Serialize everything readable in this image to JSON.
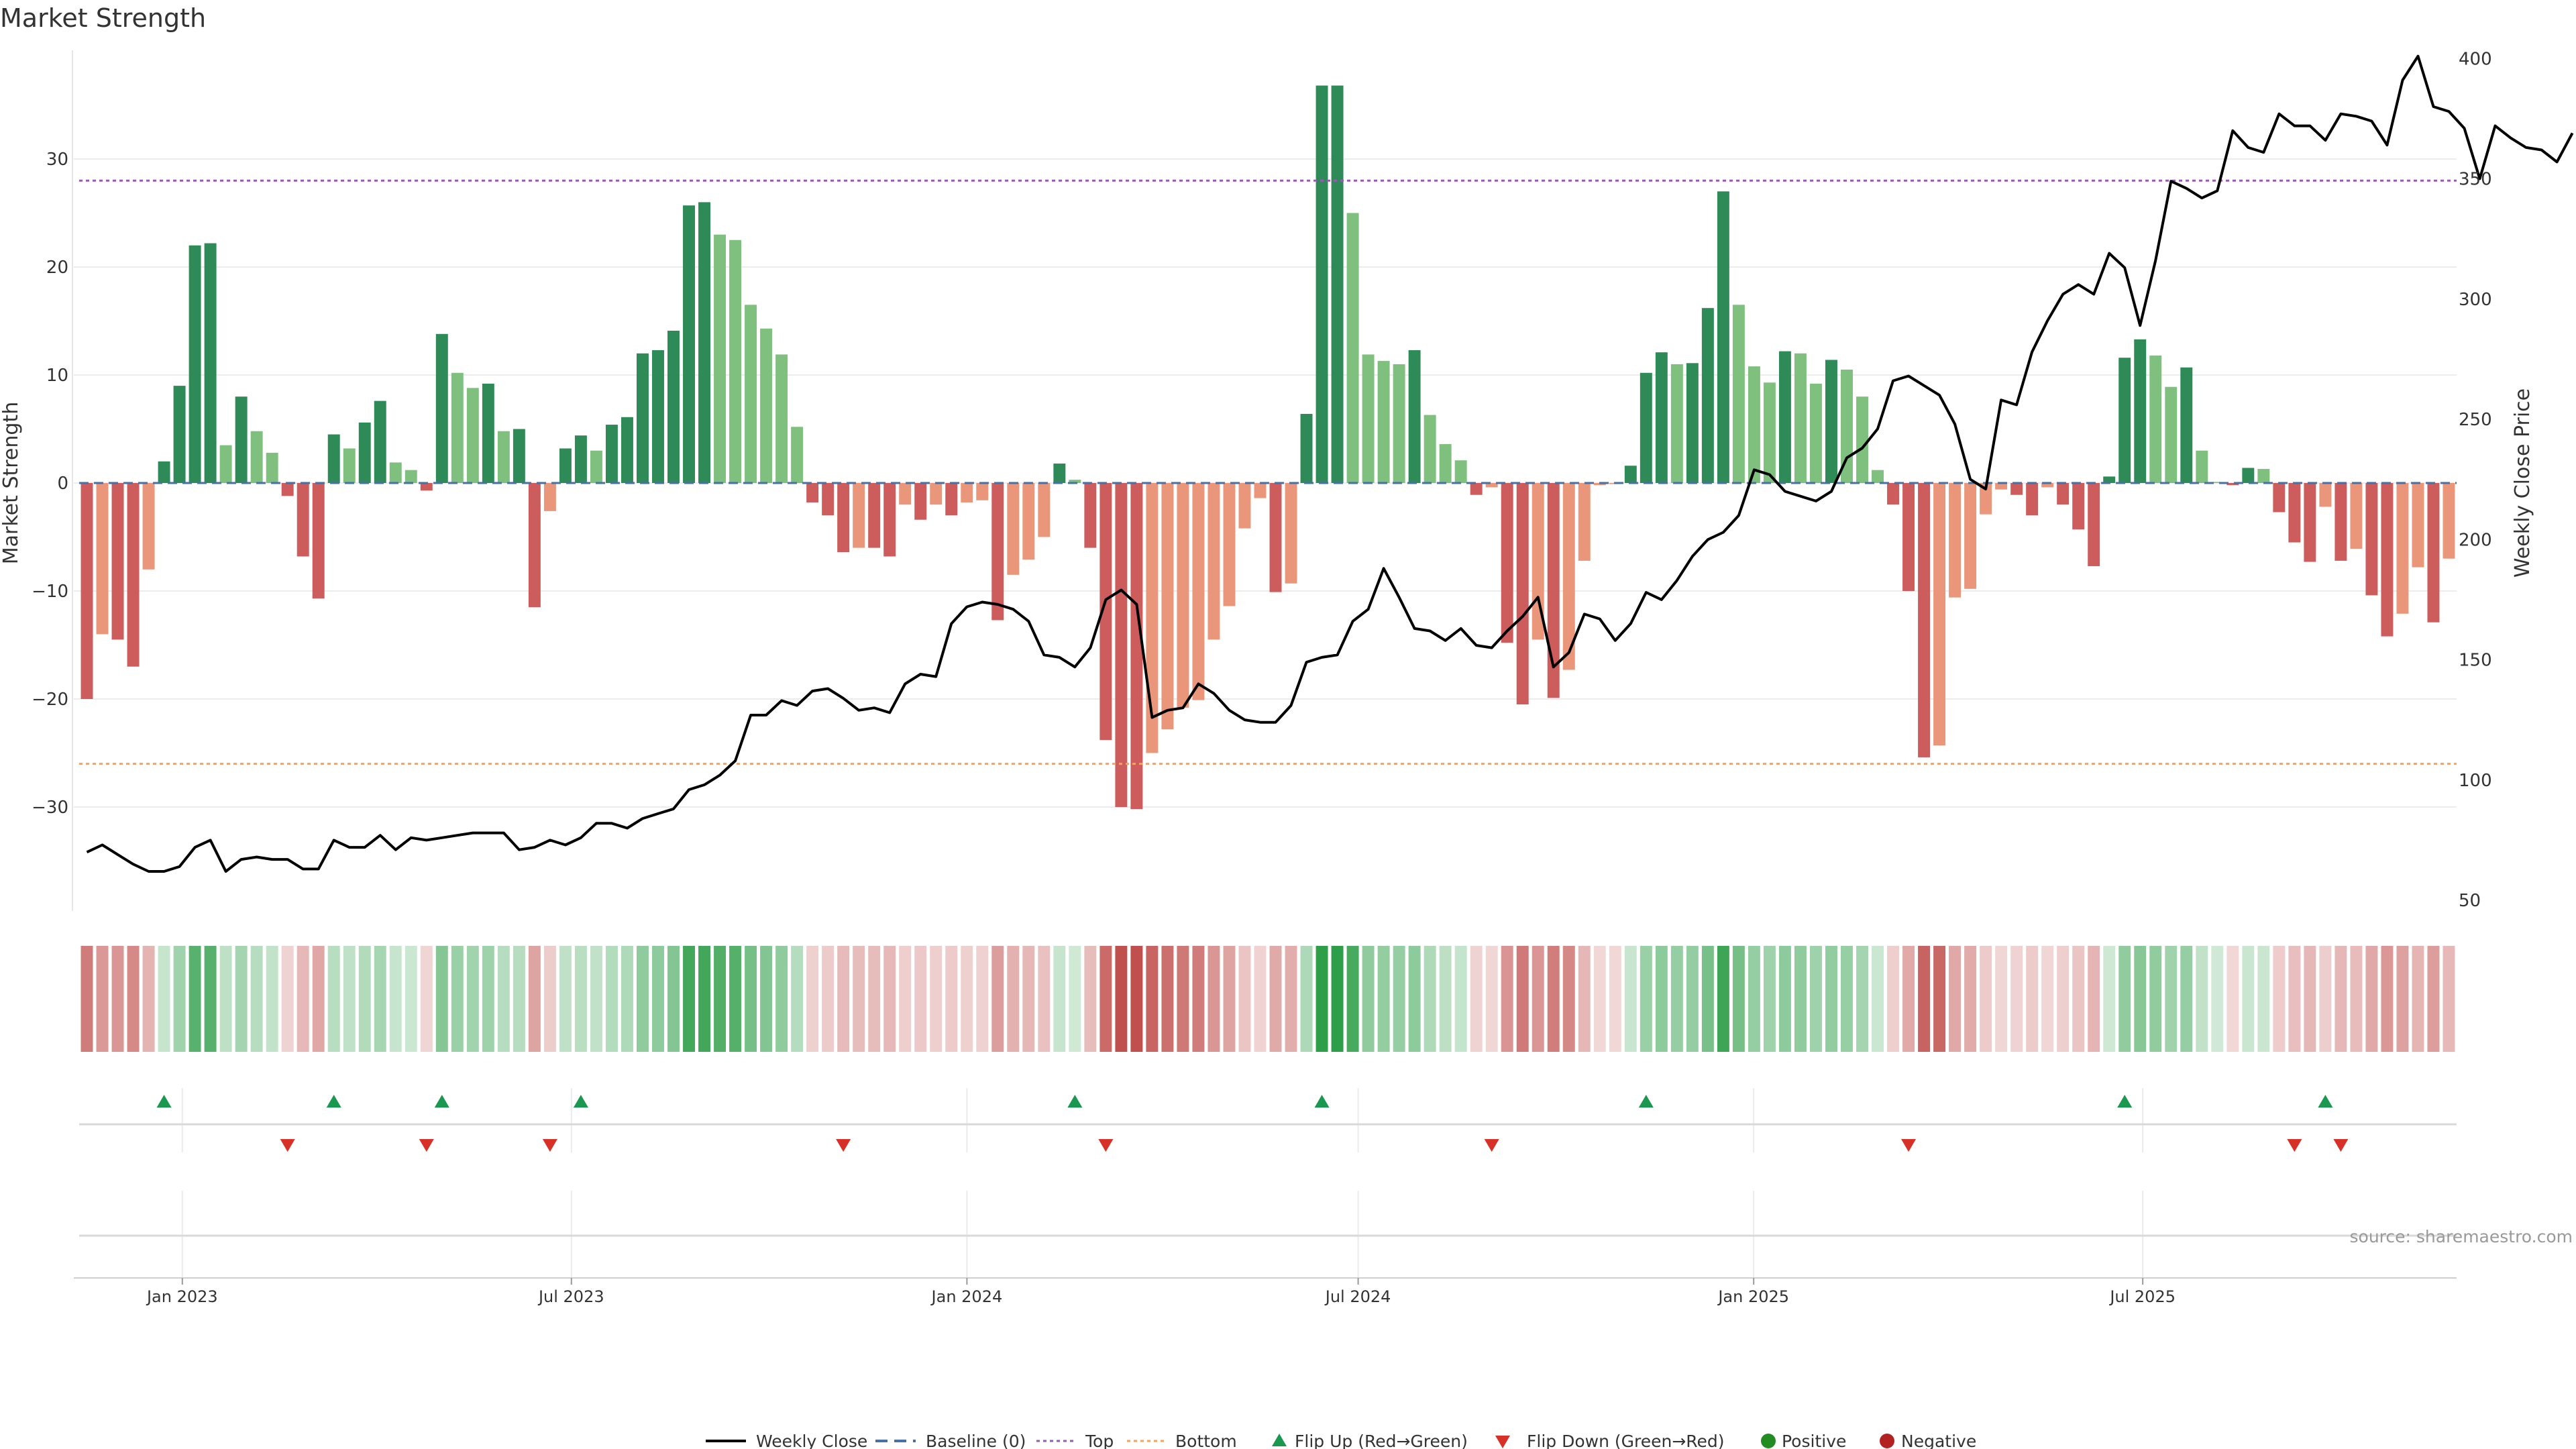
{
  "chart_data": {
    "type": "bar",
    "title": "Market Strength",
    "ylabel_left": "Market Strength",
    "ylabel_right": "Weekly Close Price",
    "ylim_left": [
      -40,
      40
    ],
    "ylim_right": [
      45,
      405
    ],
    "left_ticks": [
      30,
      20,
      10,
      0,
      -10,
      -20,
      -30
    ],
    "left_tick_labels": [
      "30",
      "20",
      "10",
      "0",
      "−10",
      "−20",
      "−30"
    ],
    "right_ticks": [
      400,
      350,
      300,
      250,
      200,
      150,
      100,
      50
    ],
    "right_tick_labels": [
      "400",
      "350",
      "300",
      "250",
      "200",
      "150",
      "100",
      "50"
    ],
    "x_start": "2022-11-14",
    "x_end": "2025-11-24",
    "date_ticks": [
      {
        "date": "2023-01-01",
        "label": "Jan 2023"
      },
      {
        "date": "2023-07-01",
        "label": "Jul 2023"
      },
      {
        "date": "2024-01-01",
        "label": "Jan 2024"
      },
      {
        "date": "2024-07-01",
        "label": "Jul 2024"
      },
      {
        "date": "2025-01-01",
        "label": "Jan 2025"
      },
      {
        "date": "2025-07-01",
        "label": "Jul 2025"
      }
    ],
    "top_level": 28,
    "bottom_level": -26,
    "strength": [
      -20,
      -14,
      -14.5,
      -17,
      -8,
      2,
      9,
      22,
      22.2,
      3.5,
      8,
      4.8,
      2.8,
      -1.2,
      -6.8,
      -10.7,
      4.5,
      3.2,
      5.6,
      7.6,
      1.9,
      1.2,
      -0.7,
      13.8,
      10.2,
      8.8,
      9.2,
      4.8,
      5,
      -11.5,
      -2.6,
      3.2,
      4.4,
      3,
      5.4,
      6.1,
      12,
      12.3,
      14.1,
      25.7,
      26,
      23,
      22.5,
      16.5,
      14.3,
      11.9,
      5.2,
      -1.8,
      -3,
      -6.4,
      -6,
      -6,
      -6.8,
      -2,
      -3.4,
      -2,
      -3,
      -1.8,
      -1.6,
      -12.7,
      -8.5,
      -7.1,
      -5,
      1.8,
      0.3,
      -6,
      -23.8,
      -30,
      -30.2,
      -25,
      -22.8,
      -20.8,
      -20.1,
      -14.5,
      -11.4,
      -4.2,
      -1.4,
      -10.1,
      -9.3,
      6.4,
      36.8,
      36.8,
      25,
      11.9,
      11.3,
      11,
      12.3,
      6.3,
      3.6,
      2.1,
      -1.1,
      -0.4,
      -14.8,
      -20.5,
      -14.5,
      -19.9,
      -17.3,
      -7.2,
      -0.2,
      -0.1,
      1.6,
      10.2,
      12.1,
      11,
      11.1,
      16.2,
      27,
      16.5,
      10.8,
      9.3,
      12.2,
      12,
      9.2,
      11.4,
      10.5,
      8,
      1.2,
      -2,
      -10,
      -25.4,
      -24.3,
      -10.6,
      -9.8,
      -2.9,
      -0.6,
      -1.1,
      -3,
      -0.4,
      -2,
      -4.3,
      -7.7,
      0.6,
      11.6,
      13.3,
      11.8,
      8.9,
      10.7,
      3,
      0.1,
      -0.2,
      1.4,
      1.3,
      -2.7,
      -5.5,
      -7.3,
      -2.2,
      -7.2,
      -6.1,
      -10.4,
      -14.2,
      -12.1,
      -7.8,
      -12.9,
      -7
    ],
    "weekly_close": [
      70,
      73,
      69,
      65,
      62,
      62,
      64,
      72,
      75,
      62,
      67,
      68,
      67,
      67,
      63,
      63,
      75,
      72,
      72,
      77,
      71,
      76,
      75,
      76,
      77,
      78,
      78,
      78,
      71,
      72,
      75,
      73,
      76,
      82,
      82,
      80,
      84,
      86,
      88,
      96,
      98,
      102,
      108,
      127,
      127,
      133,
      131,
      137,
      138,
      134,
      129,
      130,
      128,
      140,
      144,
      143,
      165,
      172,
      174,
      173,
      171,
      166,
      152,
      151,
      147,
      155,
      175,
      179,
      173,
      126,
      129,
      130,
      140,
      136,
      129,
      125,
      124,
      124,
      131,
      149,
      151,
      152,
      166,
      171,
      188,
      176,
      163,
      162,
      158,
      163,
      156,
      155,
      162,
      168,
      176,
      147,
      153,
      169,
      167,
      158,
      165,
      178,
      175,
      183,
      193,
      200,
      203,
      210,
      229,
      227,
      220,
      218,
      216,
      220,
      234,
      238,
      246,
      266,
      268,
      264,
      260,
      248,
      225,
      221,
      258,
      256,
      278,
      291,
      302,
      306,
      302,
      319,
      313,
      289,
      316,
      349,
      346,
      342,
      345,
      370,
      363,
      361,
      377,
      372,
      372,
      366,
      377,
      376,
      374,
      364,
      391,
      401,
      380,
      378,
      371,
      350,
      372,
      367,
      363,
      362,
      357,
      369
    ],
    "flip_up_index": [
      5,
      16,
      23,
      32,
      64,
      80,
      101,
      132,
      145
    ],
    "flip_down_index": [
      13,
      22,
      30,
      49,
      66,
      91,
      118,
      143,
      146
    ],
    "series": [
      {
        "name": "Weekly Close"
      },
      {
        "name": "Baseline (0)"
      },
      {
        "name": "Top"
      },
      {
        "name": "Bottom"
      },
      {
        "name": "Flip Up (Red→Green)"
      },
      {
        "name": "Flip Down (Green→Red)"
      },
      {
        "name": "Positive"
      },
      {
        "name": "Negative"
      }
    ],
    "legend_placement": "bottom-center",
    "grid": true,
    "source_text": "source: sharemaestro.com"
  },
  "colors": {
    "pos_strong": "#2e8b57",
    "pos_light": "#7fc07f",
    "neg_strong": "#cd5c5c",
    "neg_light": "#e9967a",
    "top_line": "#9b59b6",
    "bottom_line": "#f4a460",
    "baseline": "#4a6fa5",
    "close_line": "#000000",
    "flip_up": "#1a9850",
    "flip_down": "#d73027",
    "positive_dot": "#228b22",
    "negative_dot": "#b22222"
  }
}
